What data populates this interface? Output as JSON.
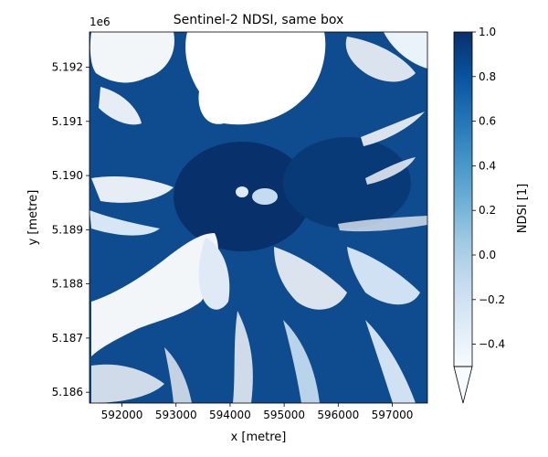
{
  "chart_data": {
    "type": "heatmap",
    "title": "Sentinel-2 NDSI, same box",
    "xlabel": "x [metre]",
    "ylabel": "y [metre]",
    "y_offset_label": "1e6",
    "xlim": [
      591400,
      597650
    ],
    "ylim": [
      5185800,
      5192650
    ],
    "xticks": [
      592000,
      593000,
      594000,
      595000,
      596000,
      597000
    ],
    "xtick_labels": [
      "592000",
      "593000",
      "594000",
      "595000",
      "596000",
      "597000"
    ],
    "yticks": [
      5186000,
      5187000,
      5188000,
      5189000,
      5190000,
      5191000,
      5192000
    ],
    "ytick_labels": [
      "5.186",
      "5.187",
      "5.188",
      "5.189",
      "5.190",
      "5.191",
      "5.192"
    ],
    "colormap": "Blues",
    "colorbar": {
      "label": "NDSI [1]",
      "range": [
        -0.5,
        1.0
      ],
      "extend": "min",
      "ticks": [
        -0.4,
        -0.2,
        0.0,
        0.2,
        0.4,
        0.6,
        0.8,
        1.0
      ],
      "tick_labels": [
        "−0.4",
        "−0.2",
        "0.0",
        "0.2",
        "0.4",
        "0.6",
        "0.8",
        "1.0"
      ],
      "color_low": "#f7fbff",
      "color_high": "#08306b"
    }
  }
}
